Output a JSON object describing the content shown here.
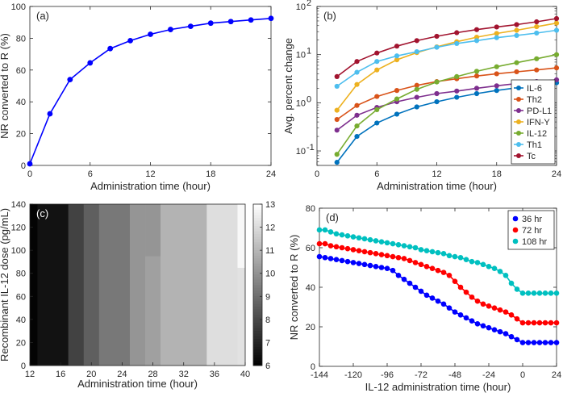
{
  "chart_data": [
    {
      "panel": "a",
      "type": "line",
      "panel_label": "(a)",
      "xlabel": "Administration time (hour)",
      "ylabel": "NR converted to R (%)",
      "xlim": [
        0,
        24
      ],
      "ylim": [
        0,
        100
      ],
      "xticks": [
        0,
        6,
        12,
        18,
        24
      ],
      "yticks": [
        0,
        20,
        40,
        60,
        80,
        100
      ],
      "color": "#0000ff",
      "x": [
        0,
        2,
        4,
        6,
        8,
        10,
        12,
        14,
        16,
        18,
        20,
        22,
        24
      ],
      "y": [
        1,
        32.5,
        54,
        64.5,
        73.5,
        78.5,
        82.5,
        85.5,
        87.5,
        89.5,
        90.5,
        91.5,
        92.5
      ]
    },
    {
      "panel": "b",
      "type": "line",
      "panel_label": "(b)",
      "xlabel": "Administration time (hour)",
      "ylabel": "Avg. percent change",
      "yscale": "log",
      "xlim": [
        0,
        24
      ],
      "ylim": [
        0.05,
        100
      ],
      "xticks": [
        0,
        6,
        12,
        18,
        24
      ],
      "yticks": [
        "10^-1",
        "10^0",
        "10^1",
        "10^2"
      ],
      "legend_position": "bottom-right",
      "x": [
        2,
        4,
        6,
        8,
        10,
        12,
        14,
        16,
        18,
        20,
        22,
        24
      ],
      "series": [
        {
          "name": "IL-6",
          "color": "#0072bd",
          "values": [
            0.058,
            0.2,
            0.38,
            0.58,
            0.82,
            1.05,
            1.3,
            1.55,
            1.8,
            2.05,
            2.3,
            2.6
          ]
        },
        {
          "name": "Th2",
          "color": "#d95319",
          "values": [
            0.45,
            0.88,
            1.35,
            1.8,
            2.3,
            2.75,
            3.15,
            3.6,
            4.0,
            4.4,
            4.8,
            5.3
          ]
        },
        {
          "name": "PD-L1",
          "color": "#7e2f8e",
          "values": [
            0.27,
            0.55,
            0.8,
            1.05,
            1.3,
            1.55,
            1.75,
            2.0,
            2.25,
            2.5,
            2.75,
            3.0
          ]
        },
        {
          "name": "IFN-Y",
          "color": "#edb120",
          "values": [
            0.7,
            2.4,
            4.8,
            7.8,
            11.0,
            14.5,
            18.5,
            23.0,
            27.5,
            32.0,
            38.0,
            45.0
          ]
        },
        {
          "name": "IL-12",
          "color": "#77ac30",
          "values": [
            0.085,
            0.33,
            0.72,
            1.2,
            1.9,
            2.7,
            3.5,
            4.5,
            5.6,
            6.8,
            8.2,
            10.0
          ]
        },
        {
          "name": "Th1",
          "color": "#4dbeee",
          "values": [
            2.2,
            4.3,
            7.2,
            9.4,
            11.5,
            14.2,
            17.0,
            19.5,
            22.5,
            25.0,
            28.0,
            32.0
          ]
        },
        {
          "name": "Tc",
          "color": "#a2142f",
          "values": [
            3.5,
            7.2,
            10.8,
            15.0,
            19.5,
            24.0,
            28.5,
            33.0,
            37.5,
            42.0,
            48.0,
            56.0
          ]
        }
      ]
    },
    {
      "panel": "c",
      "type": "heatmap",
      "panel_label": "(c)",
      "xlabel": "Administration time (hour)",
      "ylabel": "Recombinant IL-12 dose (pg/mL)",
      "xlim": [
        12,
        40
      ],
      "ylim": [
        0,
        140
      ],
      "xticks": [
        12,
        16,
        20,
        24,
        28,
        32,
        36,
        40
      ],
      "yticks": [
        0,
        20,
        40,
        60,
        80,
        100,
        120,
        140
      ],
      "colorbar_range": [
        6,
        13
      ],
      "colorbar_ticks": [
        6,
        7,
        8,
        9,
        10,
        11,
        12,
        13
      ],
      "cells": [
        {
          "x0": 12,
          "x1": 13,
          "y0": 0,
          "y1": 140,
          "value": 6.1
        },
        {
          "x0": 13,
          "x1": 17,
          "y0": 0,
          "y1": 140,
          "value": 6.5
        },
        {
          "x0": 17,
          "x1": 19,
          "y0": 0,
          "y1": 140,
          "value": 7.8
        },
        {
          "x0": 19,
          "x1": 21,
          "y0": 0,
          "y1": 140,
          "value": 8.6
        },
        {
          "x0": 21,
          "x1": 25,
          "y0": 0,
          "y1": 140,
          "value": 9.3
        },
        {
          "x0": 25,
          "x1": 27,
          "y0": 0,
          "y1": 140,
          "value": 10.1
        },
        {
          "x0": 27,
          "x1": 29,
          "y0": 0,
          "y1": 95,
          "value": 10.4
        },
        {
          "x0": 27,
          "x1": 29,
          "y0": 95,
          "y1": 140,
          "value": 10.1
        },
        {
          "x0": 29,
          "x1": 35,
          "y0": 0,
          "y1": 140,
          "value": 10.9
        },
        {
          "x0": 35,
          "x1": 39,
          "y0": 0,
          "y1": 140,
          "value": 12.1
        },
        {
          "x0": 39,
          "x1": 40,
          "y0": 0,
          "y1": 85,
          "value": 12.2
        },
        {
          "x0": 39,
          "x1": 40,
          "y0": 85,
          "y1": 140,
          "value": 12.8
        }
      ]
    },
    {
      "panel": "d",
      "type": "line",
      "panel_label": "(d)",
      "xlabel": "IL-12 administration time (hour)",
      "ylabel": "NR converted to R (%)",
      "xlim": [
        -144,
        24
      ],
      "ylim": [
        0,
        80
      ],
      "xticks": [
        -144,
        -120,
        -96,
        -72,
        -48,
        -24,
        0,
        24
      ],
      "yticks": [
        0,
        20,
        40,
        60,
        80
      ],
      "legend_position": "top-right",
      "series": [
        {
          "name": "36 hr",
          "color": "#0000ff",
          "x": [
            -144,
            -140,
            -136,
            -132,
            -128,
            -124,
            -120,
            -116,
            -112,
            -108,
            -104,
            -100,
            -96,
            -92,
            -88,
            -84,
            -80,
            -76,
            -72,
            -68,
            -64,
            -60,
            -56,
            -52,
            -48,
            -44,
            -40,
            -36,
            -32,
            -28,
            -24,
            -20,
            -16,
            -12,
            -8,
            -4,
            0,
            4,
            8,
            12,
            16,
            20,
            24
          ],
          "values": [
            55.5,
            55,
            54.5,
            54,
            53.5,
            53,
            52.5,
            52,
            51.5,
            51,
            50.5,
            50,
            49.5,
            48.5,
            46,
            44,
            42,
            40,
            38,
            36,
            34.5,
            33,
            31.5,
            29.5,
            27.5,
            26,
            24.5,
            23,
            21.5,
            20.5,
            19.5,
            18.5,
            17.5,
            16.5,
            15,
            13.5,
            12,
            12,
            12,
            12,
            12,
            12,
            12
          ]
        },
        {
          "name": "72 hr",
          "color": "#ff0000",
          "x": [
            -144,
            -140,
            -136,
            -132,
            -128,
            -124,
            -120,
            -116,
            -112,
            -108,
            -104,
            -100,
            -96,
            -92,
            -88,
            -84,
            -80,
            -76,
            -72,
            -68,
            -64,
            -60,
            -56,
            -52,
            -48,
            -44,
            -40,
            -36,
            -32,
            -28,
            -24,
            -20,
            -16,
            -12,
            -8,
            -4,
            0,
            4,
            8,
            12,
            16,
            20,
            24
          ],
          "values": [
            62,
            62,
            61,
            60.5,
            60,
            59.5,
            59,
            58.5,
            58,
            57.5,
            57,
            56.5,
            56,
            55.5,
            55,
            54.5,
            53.5,
            52.5,
            51.5,
            50.5,
            49.5,
            48.5,
            47.5,
            46,
            43,
            40,
            37.5,
            35,
            33,
            31.5,
            30.5,
            29.5,
            28.5,
            27.5,
            26,
            24,
            22,
            22,
            22,
            22,
            22,
            22,
            22
          ]
        },
        {
          "name": "108 hr",
          "color": "#00c0c0",
          "x": [
            -144,
            -140,
            -136,
            -132,
            -128,
            -124,
            -120,
            -116,
            -112,
            -108,
            -104,
            -100,
            -96,
            -92,
            -88,
            -84,
            -80,
            -76,
            -72,
            -68,
            -64,
            -60,
            -56,
            -52,
            -48,
            -44,
            -40,
            -36,
            -32,
            -28,
            -24,
            -20,
            -16,
            -12,
            -8,
            -4,
            0,
            4,
            8,
            12,
            16,
            20,
            24
          ],
          "values": [
            69,
            69,
            68,
            67,
            66.5,
            66,
            65.5,
            65,
            64.5,
            64,
            63.5,
            63,
            62.5,
            62,
            61.5,
            61,
            60.5,
            60,
            59,
            58.5,
            58,
            57.5,
            57,
            56,
            55.5,
            55,
            54,
            53,
            52.5,
            51.5,
            50.5,
            49.5,
            48,
            46,
            42,
            39,
            37,
            37,
            37,
            37,
            37,
            37,
            37
          ]
        }
      ]
    }
  ]
}
